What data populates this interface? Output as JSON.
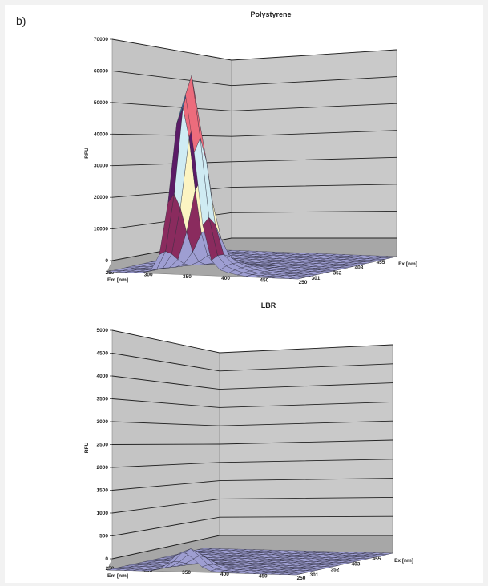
{
  "panel_label": "b)",
  "chart_data": [
    {
      "type": "surface3d",
      "title": "Polystyrene",
      "zlabel": "RFU",
      "xlabel": "Em [nm]",
      "ylabel": "Ex [nm]",
      "z_ticks": [
        "0",
        "10000",
        "20000",
        "30000",
        "40000",
        "50000",
        "60000",
        "70000"
      ],
      "zlim": [
        0,
        70000
      ],
      "em_ticks": [
        "250",
        "300",
        "350",
        "400",
        "450",
        "250"
      ],
      "ex_ticks": [
        "301",
        "352",
        "403",
        "455"
      ],
      "peak": {
        "em_nm": 340,
        "ex_nm": 250,
        "rfu": 63000
      },
      "band_colors": [
        "#9e9ed2",
        "#8a2b5e",
        "#fcf4c2",
        "#cfebf3",
        "#5b1b66",
        "#ec6c7c",
        "#3c6a9c"
      ]
    },
    {
      "type": "surface3d",
      "title": "LBR",
      "zlabel": "RFU",
      "xlabel": "Em [nm]",
      "ylabel": "Ex [nm]",
      "z_ticks": [
        "0",
        "500",
        "1000",
        "1500",
        "2000",
        "2500",
        "3000",
        "3500",
        "4000",
        "4500",
        "5000"
      ],
      "zlim": [
        0,
        5000
      ],
      "em_ticks": [
        "250",
        "300",
        "350",
        "400",
        "450",
        "250"
      ],
      "ex_ticks": [
        "301",
        "352",
        "403",
        "455"
      ],
      "peak": {
        "em_nm": 350,
        "ex_nm": 250,
        "rfu": 480
      },
      "band_colors": [
        "#9e9ed2"
      ]
    }
  ]
}
